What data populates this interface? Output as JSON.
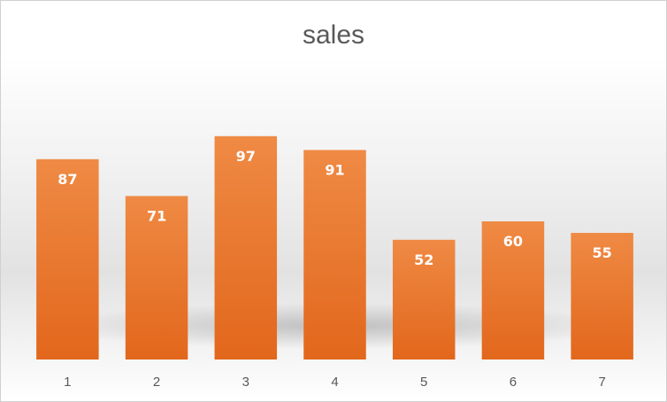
{
  "chart_data": {
    "type": "bar",
    "title": "sales",
    "categories": [
      "1",
      "2",
      "3",
      "4",
      "5",
      "6",
      "7"
    ],
    "values": [
      87,
      71,
      97,
      91,
      52,
      60,
      55
    ],
    "xlabel": "",
    "ylabel": "",
    "ylim": [
      0,
      100
    ],
    "grid": false,
    "legend": "none",
    "bar_color": "#ED7D31",
    "bar_color_dark": "#E06A1B",
    "data_labels": true
  }
}
